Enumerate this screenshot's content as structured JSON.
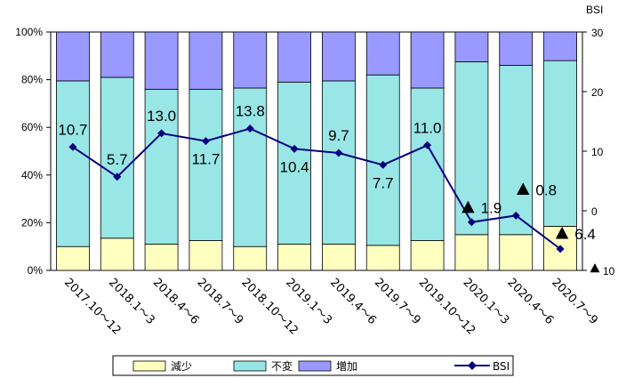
{
  "chart_data": {
    "type": "bar",
    "stacked": true,
    "categories": [
      "2017.10～12",
      "2018.1～3",
      "2018.4～6",
      "2018.7～9",
      "2018.10～12",
      "2019.1～3",
      "2019.4～6",
      "2019.7～9",
      "2019.10～12",
      "2020.1～3",
      "2020.4～6",
      "2020.7～9"
    ],
    "series": [
      {
        "name": "減少",
        "values": [
          10,
          13.5,
          11,
          12.5,
          10,
          11,
          11,
          10.5,
          12.5,
          15,
          15,
          18.5
        ],
        "color": "#ffffc0"
      },
      {
        "name": "不変",
        "values": [
          69.5,
          67.5,
          65,
          63.5,
          66.5,
          68,
          68.5,
          71.5,
          64,
          72.5,
          71,
          69.5
        ],
        "color": "#99e6e6"
      },
      {
        "name": "増加",
        "values": [
          20.5,
          19,
          24,
          24,
          23.5,
          21,
          20.5,
          18,
          23.5,
          12.5,
          14,
          12
        ],
        "color": "#9999ff"
      }
    ],
    "line": {
      "name": "BSI",
      "values": [
        10.7,
        5.7,
        13.0,
        11.7,
        13.8,
        10.4,
        9.7,
        7.7,
        11.0,
        -1.9,
        -0.8,
        -6.4
      ],
      "color": "#000080"
    },
    "data_labels": [
      "10.7",
      "5.7",
      "13.0",
      "11.7",
      "13.8",
      "10.4",
      "9.7",
      "7.7",
      "11.0",
      "1.9",
      "0.8",
      "6.4"
    ],
    "negative_marker": "▲",
    "y_left": {
      "ticks": [
        "0%",
        "20%",
        "40%",
        "60%",
        "80%",
        "100%"
      ],
      "ylim": [
        0,
        100
      ]
    },
    "y_right": {
      "title": "BSI",
      "ticks": [
        "10",
        "0",
        "10",
        "20",
        "30"
      ],
      "tick_values": [
        -10,
        0,
        10,
        20,
        30
      ],
      "negative_ticks": [
        true,
        false,
        false,
        false,
        false
      ],
      "ylim": [
        -10,
        30
      ]
    },
    "grid": false,
    "legend_position": "bottom"
  }
}
